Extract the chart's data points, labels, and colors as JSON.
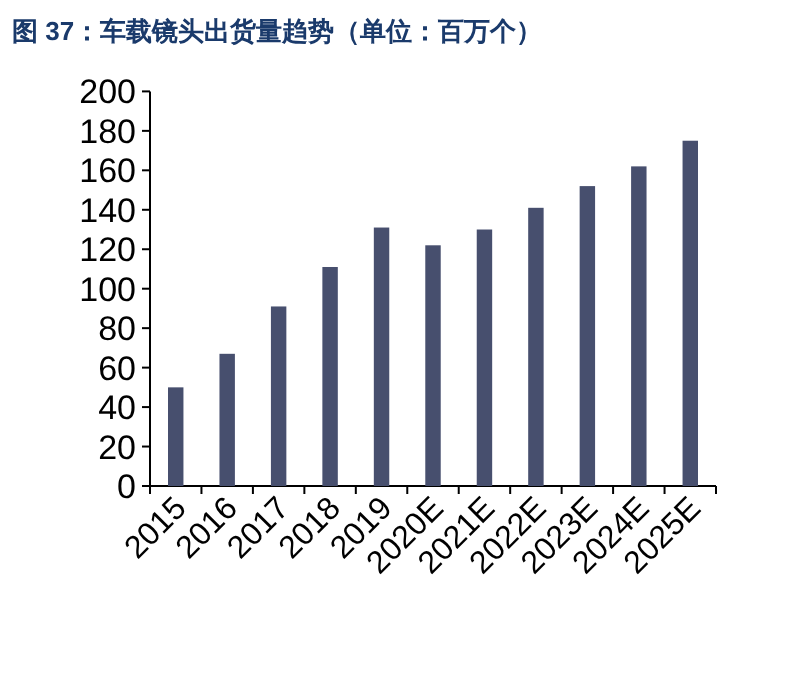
{
  "chart_data": {
    "type": "bar",
    "title": "图 37：车载镜头出货量趋势（单位：百万个）",
    "categories": [
      "2015",
      "2016",
      "2017",
      "2018",
      "2019",
      "2020E",
      "2021E",
      "2022E",
      "2023E",
      "2024E",
      "2025E"
    ],
    "values": [
      50,
      67,
      91,
      111,
      131,
      122,
      130,
      141,
      152,
      162,
      175
    ],
    "color": "#474f6e",
    "ylim": [
      0,
      200
    ],
    "yticks": [
      0,
      20,
      40,
      60,
      80,
      100,
      120,
      140,
      160,
      180,
      200
    ],
    "grid": false
  }
}
